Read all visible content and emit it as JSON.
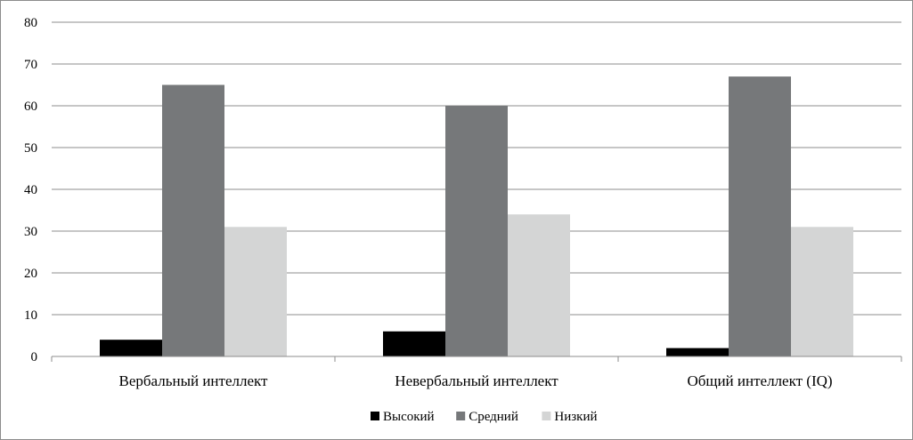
{
  "chart_data": {
    "type": "bar",
    "categories": [
      "Вербальный интеллект",
      "Невербальный интеллект",
      "Общий интеллект (IQ)"
    ],
    "series": [
      {
        "name": "Высокий",
        "values": [
          4,
          6,
          2
        ],
        "color": "#000000"
      },
      {
        "name": "Средний",
        "values": [
          65,
          60,
          67
        ],
        "color": "#76787a"
      },
      {
        "name": "Низкий",
        "values": [
          31,
          34,
          31
        ],
        "color": "#d4d5d5"
      }
    ],
    "yticks": [
      "0",
      "10",
      "20",
      "30",
      "40",
      "50",
      "60",
      "70",
      "80"
    ],
    "ylim": [
      0,
      80
    ],
    "grid": true,
    "legend_position": "bottom",
    "colors": {
      "gridline": "#8c8c8c",
      "axis": "#8c8c8c"
    }
  }
}
